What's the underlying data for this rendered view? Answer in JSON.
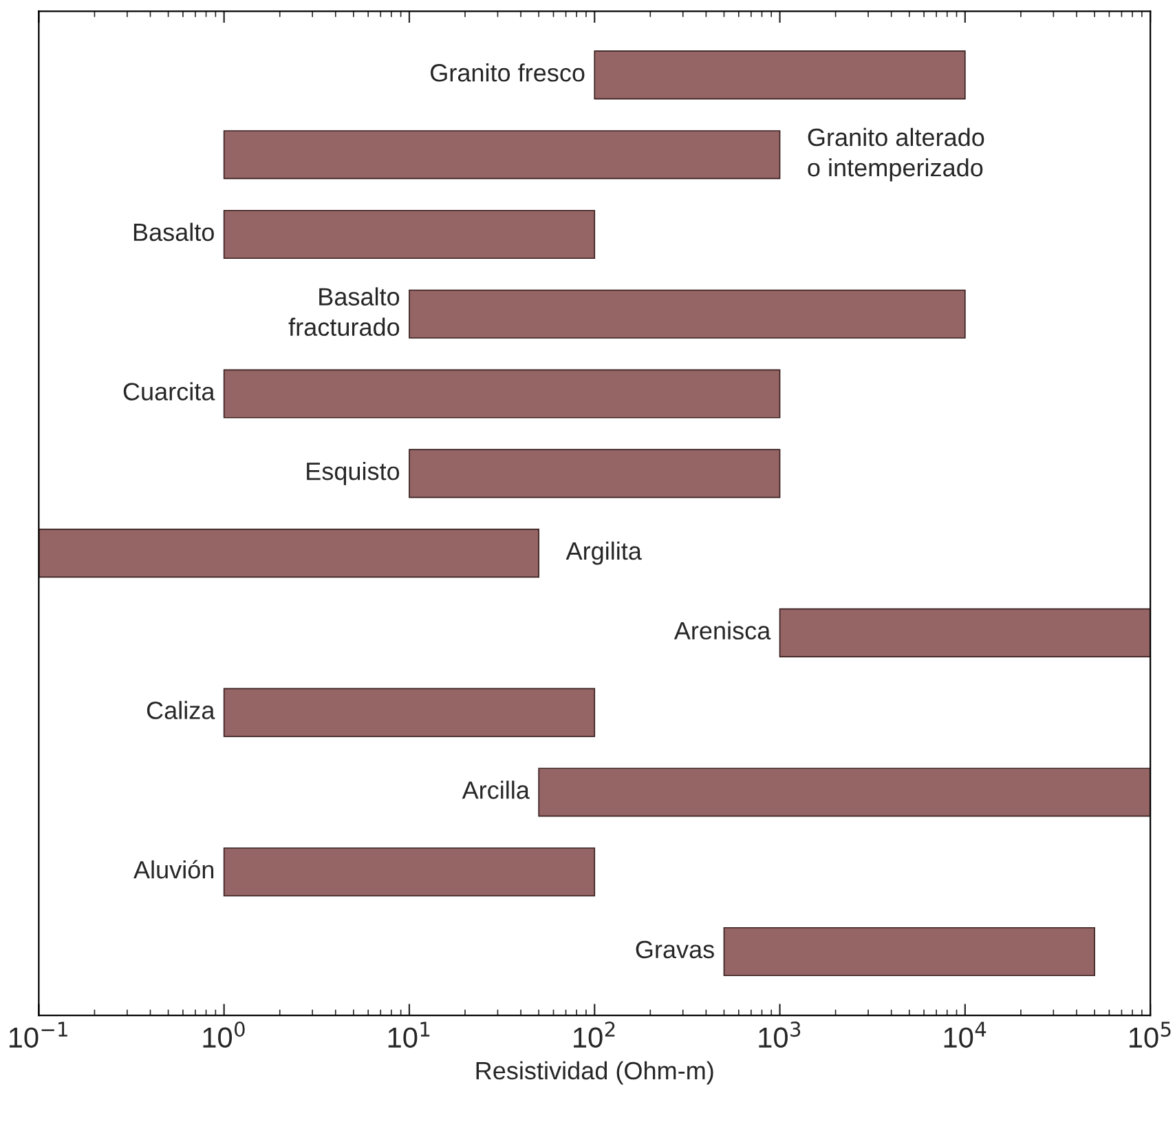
{
  "chart_data": {
    "type": "bar",
    "orientation": "horizontal",
    "log": "x",
    "categories": [
      "Granito fresco",
      "Granito alterado\no intemperizado",
      "Basalto",
      "Basalto\nfracturado",
      "Cuarcita",
      "Esquisto",
      "Argilita",
      "Arenisca",
      "Caliza",
      "Arcilla",
      "Aluvión",
      "Gravas"
    ],
    "base": [
      100,
      1,
      1,
      10,
      1,
      10,
      0.1,
      1000,
      1,
      50,
      1,
      500
    ],
    "values": [
      9900,
      999,
      99,
      9990,
      999,
      990,
      49.9,
      99000,
      99,
      99950,
      99,
      49500
    ],
    "color": "#956464",
    "xlim": [
      0.1,
      100000
    ],
    "xticks": [
      {
        "value": 0.1,
        "label": "10$^{−1}$"
      },
      {
        "value": 1,
        "label": "10$^{0}$"
      },
      {
        "value": 10,
        "label": "10$^{1}$"
      },
      {
        "value": 100,
        "label": "10$^{2}$"
      },
      {
        "value": 1000,
        "label": "10$^{3}$"
      },
      {
        "value": 10000,
        "label": "10$^{4}$"
      },
      {
        "value": 100000,
        "label": "10$^{5}$"
      }
    ],
    "xlabel": "Resistividad (Ohm-m)",
    "grid": false,
    "legend": false
  }
}
